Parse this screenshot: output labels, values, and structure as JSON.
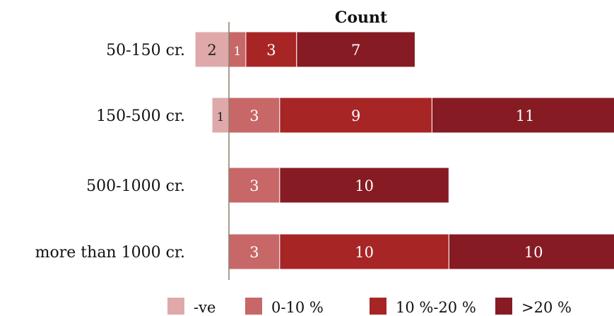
{
  "chart_data": {
    "type": "bar",
    "orientation": "horizontal",
    "stacked": "diverging",
    "title": "Count",
    "xlabel": "",
    "ylabel": "",
    "grid": false,
    "legend_position": "bottom",
    "categories": [
      "50-150 cr.",
      "150-500 cr.",
      "500-1000 cr.",
      "more than 1000 cr."
    ],
    "series": [
      {
        "name": "-ve",
        "values": [
          2,
          1,
          0,
          0
        ],
        "color": "#dfa9a9",
        "text_color": "#222222",
        "direction": "negative"
      },
      {
        "name": "0-10 %",
        "values": [
          1,
          3,
          3,
          3
        ],
        "color": "#c76767",
        "text_color": "#ffffff",
        "direction": "positive"
      },
      {
        "name": "10 %-20 %",
        "values": [
          3,
          9,
          0,
          10
        ],
        "color": "#a82525",
        "text_color": "#ffffff",
        "direction": "positive"
      },
      {
        "name": ">20 %",
        "values": [
          7,
          11,
          10,
          10
        ],
        "color": "#861b24",
        "text_color": "#ffffff",
        "direction": "positive"
      }
    ],
    "baseline_color": "#8d7f6a"
  }
}
